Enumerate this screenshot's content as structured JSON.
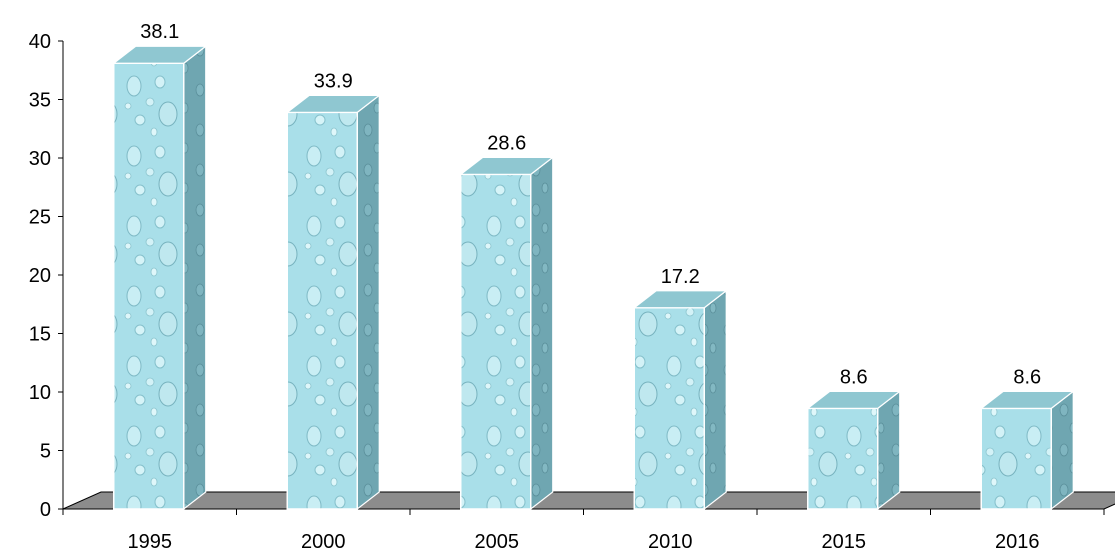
{
  "chart_data": {
    "type": "bar",
    "categories": [
      "1995",
      "2000",
      "2005",
      "2010",
      "2015",
      "2016"
    ],
    "values": [
      38.1,
      33.9,
      28.6,
      17.2,
      8.6,
      8.6
    ],
    "data_labels": [
      "38.1",
      "33.9",
      "28.6",
      "17.2",
      "8.6",
      "8.6"
    ],
    "y_ticks": [
      "0",
      "5",
      "10",
      "15",
      "20",
      "25",
      "30",
      "35",
      "40"
    ],
    "ylim": [
      0,
      40
    ],
    "grid": false,
    "legend": "none",
    "style": "3d-column",
    "colors": {
      "bar_front": "#a8dfe8",
      "bar_front_light": "#d8f3f7",
      "bar_side": "#6fa7b2",
      "bar_top": "#8fc7d1",
      "floor": "#8c8c8c",
      "axis": "#000000"
    }
  }
}
